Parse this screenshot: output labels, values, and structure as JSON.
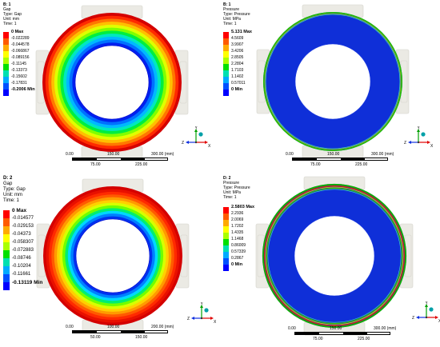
{
  "panels": [
    {
      "header": [
        "B: 1",
        "Gap",
        "Type: Gap",
        "Unit: mm",
        "Time: 1"
      ],
      "legend": [
        {
          "label": "0 Max",
          "color": "#ff0000",
          "strong": true
        },
        {
          "label": "-0.022289",
          "color": "#ff5a00"
        },
        {
          "label": "-0.044578",
          "color": "#ffaa00"
        },
        {
          "label": "-0.066867",
          "color": "#ffff00"
        },
        {
          "label": "-0.089156",
          "color": "#aaff00"
        },
        {
          "label": "-0.11145",
          "color": "#00e000"
        },
        {
          "label": "-0.13373",
          "color": "#00e0b0"
        },
        {
          "label": "-0.15602",
          "color": "#00aaff"
        },
        {
          "label": "-0.17831",
          "color": "#0050ff"
        },
        {
          "label": "-0.2006 Min",
          "color": "#0000ff",
          "strong": true
        }
      ],
      "scale": {
        "top": [
          "0.00",
          "150.00",
          "300.00 (mm)"
        ],
        "bottom": [
          "75.00",
          "225.00"
        ]
      }
    },
    {
      "header": [
        "B: 1",
        "Pressure",
        "Type: Pressure",
        "Unit: MPa",
        "Time: 1"
      ],
      "legend": [
        {
          "label": "5.131 Max",
          "color": "#ff0000",
          "strong": true
        },
        {
          "label": "4.5609",
          "color": "#ff5a00"
        },
        {
          "label": "3.9907",
          "color": "#ffaa00"
        },
        {
          "label": "3.4206",
          "color": "#ffff00"
        },
        {
          "label": "2.8505",
          "color": "#aaff00"
        },
        {
          "label": "2.2804",
          "color": "#00e000"
        },
        {
          "label": "1.7103",
          "color": "#00e0b0"
        },
        {
          "label": "1.1402",
          "color": "#00aaff"
        },
        {
          "label": "0.57011",
          "color": "#0050ff"
        },
        {
          "label": "0 Min",
          "color": "#0000ff",
          "strong": true
        }
      ],
      "scale": {
        "top": [
          "0.00",
          "150.00",
          "300.00 (mm)"
        ],
        "bottom": [
          "75.00",
          "225.00"
        ]
      }
    },
    {
      "header": [
        "D: 2",
        "Gap",
        "Type: Gap",
        "Unit: mm",
        "Time: 1"
      ],
      "legend": [
        {
          "label": "0 Max",
          "color": "#ff0000",
          "strong": true
        },
        {
          "label": "-0.014577",
          "color": "#ff5a00"
        },
        {
          "label": "-0.029153",
          "color": "#ffaa00"
        },
        {
          "label": "-0.04373",
          "color": "#ffff00"
        },
        {
          "label": "-0.058307",
          "color": "#aaff00"
        },
        {
          "label": "-0.072883",
          "color": "#00e000"
        },
        {
          "label": "-0.08746",
          "color": "#00e0b0"
        },
        {
          "label": "-0.10204",
          "color": "#00aaff"
        },
        {
          "label": "-0.11661",
          "color": "#0050ff"
        },
        {
          "label": "-0.13119 Min",
          "color": "#0000ff",
          "strong": true
        }
      ],
      "scale": {
        "top": [
          "0.00",
          "100.00",
          "200.00 (mm)"
        ],
        "bottom": [
          "50.00",
          "150.00"
        ]
      }
    },
    {
      "header": [
        "D: 2",
        "Pressure",
        "Type: Pressure",
        "Unit: MPa",
        "Time: 1"
      ],
      "legend": [
        {
          "label": "2.5803 Max",
          "color": "#ff0000",
          "strong": true
        },
        {
          "label": "2.2936",
          "color": "#ff5a00"
        },
        {
          "label": "2.0069",
          "color": "#ffaa00"
        },
        {
          "label": "1.7202",
          "color": "#ffff00"
        },
        {
          "label": "1.4335",
          "color": "#aaff00"
        },
        {
          "label": "1.1468",
          "color": "#00e000"
        },
        {
          "label": "0.86009",
          "color": "#00e0b0"
        },
        {
          "label": "0.57339",
          "color": "#00aaff"
        },
        {
          "label": "0.2867",
          "color": "#0050ff"
        },
        {
          "label": "0 Min",
          "color": "#0000ff",
          "strong": true
        }
      ],
      "scale": {
        "top": [
          "0.00",
          "150.00",
          "300.00 (mm)"
        ],
        "bottom": [
          "75.00",
          "225.00"
        ]
      }
    }
  ],
  "triad": {
    "x": "X",
    "y": "Y",
    "z": "Z"
  },
  "colors": {
    "bracket": "#ebeae4",
    "bracket_edge": "#d4d3cb",
    "interior": "#ffffff",
    "pressure_field": "#0f2fd8"
  }
}
